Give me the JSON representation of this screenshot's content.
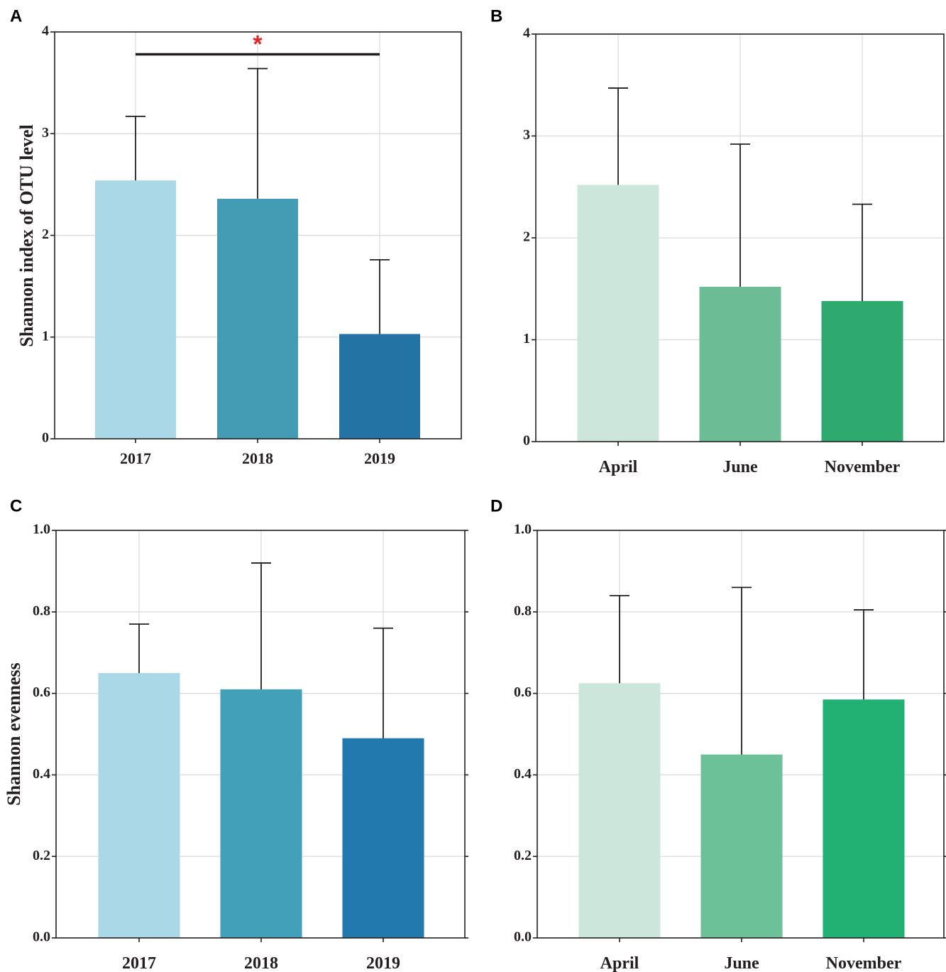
{
  "chart_data": [
    {
      "panel": "A",
      "type": "bar",
      "categories": [
        "2017",
        "2018",
        "2019"
      ],
      "values": [
        2.54,
        2.36,
        1.03
      ],
      "errors": [
        0.63,
        1.28,
        0.73
      ],
      "colors": [
        "#abd8e6",
        "#439bb4",
        "#2373a4"
      ],
      "ylabel": "Shannon index of OTU level",
      "ylim": [
        0,
        4
      ],
      "yticks": [
        "0",
        "1",
        "2",
        "3",
        "4"
      ],
      "grid": true,
      "significance": {
        "from": 0,
        "to": 2,
        "y": 3.78,
        "label": "*"
      }
    },
    {
      "panel": "B",
      "type": "bar",
      "categories": [
        "April",
        "June",
        "November"
      ],
      "values": [
        2.52,
        1.52,
        1.38
      ],
      "errors": [
        0.95,
        1.4,
        0.95
      ],
      "colors": [
        "#cce6dc",
        "#6cbd95",
        "#2ea970"
      ],
      "ylabel": "",
      "ylim": [
        0,
        4
      ],
      "yticks": [
        "0",
        "1",
        "2",
        "3",
        "4"
      ],
      "grid": true
    },
    {
      "panel": "C",
      "type": "bar",
      "categories": [
        "2017",
        "2018",
        "2019"
      ],
      "values": [
        0.65,
        0.61,
        0.49
      ],
      "errors": [
        0.12,
        0.31,
        0.27
      ],
      "colors": [
        "#abd8e6",
        "#42a0b8",
        "#2279ae"
      ],
      "ylabel": "Shannon evenness",
      "ylim": [
        0,
        1
      ],
      "yticks": [
        "0.0",
        "0.2",
        "0.4",
        "0.6",
        "0.8",
        "1.0"
      ],
      "grid": true
    },
    {
      "panel": "D",
      "type": "bar",
      "categories": [
        "April",
        "June",
        "November"
      ],
      "values": [
        0.625,
        0.45,
        0.585
      ],
      "errors": [
        0.215,
        0.41,
        0.22
      ],
      "colors": [
        "#cce6dc",
        "#6cc198",
        "#22b073"
      ],
      "ylabel": "",
      "ylim": [
        0,
        1
      ],
      "yticks": [
        "0.0",
        "0.2",
        "0.4",
        "0.6",
        "0.8",
        "1.0"
      ],
      "grid": true
    }
  ]
}
